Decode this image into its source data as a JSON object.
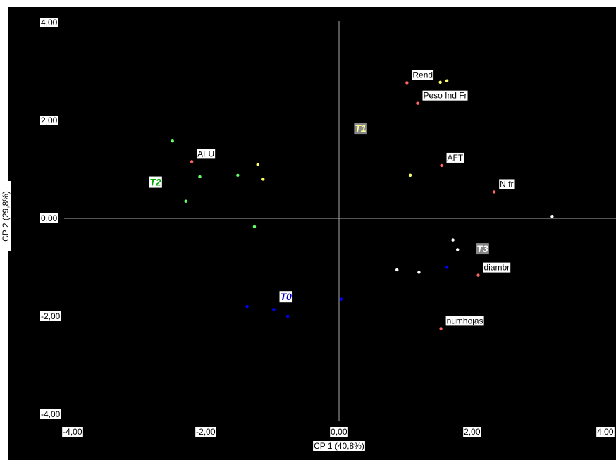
{
  "chart_data": {
    "type": "scatter",
    "xlabel": "CP 1 (40,8%)",
    "ylabel": "CP 2 (29,8%)",
    "xlim": [
      -4,
      4
    ],
    "ylim": [
      -4,
      4
    ],
    "x_ticks": [
      "-4,00",
      "-2,00",
      "0,00",
      "2,00",
      "4,00"
    ],
    "y_ticks": [
      "4,00",
      "2,00",
      "0,00",
      "-2,00",
      "-4,00"
    ],
    "x_tick_values": [
      -4,
      -2,
      0,
      2,
      4
    ],
    "y_tick_values": [
      4,
      2,
      0,
      -2,
      -4
    ],
    "series": [
      {
        "color": "#ffff66",
        "points": [
          [
            1.52,
            2.78
          ],
          [
            1.62,
            2.81
          ],
          [
            -1.22,
            1.1
          ],
          [
            -1.14,
            0.8
          ],
          [
            1.07,
            0.88
          ]
        ]
      },
      {
        "color": "#66ff66",
        "points": [
          [
            -2.5,
            1.58
          ],
          [
            -2.09,
            0.85
          ],
          [
            -1.52,
            0.88
          ],
          [
            -2.3,
            0.35
          ],
          [
            -1.27,
            -0.17
          ]
        ]
      },
      {
        "color": "#ffffff",
        "points": [
          [
            3.2,
            0.04
          ],
          [
            1.71,
            -0.44
          ],
          [
            1.78,
            -0.64
          ],
          [
            0.87,
            -1.05
          ],
          [
            1.2,
            -1.1
          ]
        ]
      },
      {
        "color": "#0000ff",
        "points": [
          [
            1.62,
            -1.0
          ],
          [
            0.03,
            -1.65
          ],
          [
            -1.38,
            -1.8
          ],
          [
            -0.98,
            -1.86
          ],
          [
            -0.77,
            -2.0
          ]
        ]
      }
    ],
    "variables": [
      {
        "name": "Rend",
        "x": 1.02,
        "y": 2.77
      },
      {
        "name": "Peso Ind Fr",
        "x": 1.18,
        "y": 2.35
      },
      {
        "name": "AFU",
        "x": -2.21,
        "y": 1.16
      },
      {
        "name": "AFT",
        "x": 1.54,
        "y": 1.08
      },
      {
        "name": "N fr",
        "x": 2.33,
        "y": 0.54
      },
      {
        "name": "diambr",
        "x": 2.09,
        "y": -1.16
      },
      {
        "name": "numhojas",
        "x": 1.53,
        "y": -2.25
      }
    ],
    "groups": [
      {
        "name": "T1",
        "x": 0.3,
        "y": 1.84,
        "color": "#ffff99",
        "bg": "#888888"
      },
      {
        "name": "T2",
        "x": -2.78,
        "y": 0.74,
        "color": "#00aa00",
        "bg": "#ffffff"
      },
      {
        "name": "T3",
        "x": 2.13,
        "y": -0.62,
        "color": "#ffffff",
        "bg": "#888888"
      },
      {
        "name": "T0",
        "x": -0.82,
        "y": -1.6,
        "color": "#0000cc",
        "bg": "#ffffff"
      }
    ],
    "variable_point_color": "#ff6666",
    "background": "#000000",
    "axis_color": "#aaaaaa",
    "grid": false,
    "legend": "none"
  }
}
